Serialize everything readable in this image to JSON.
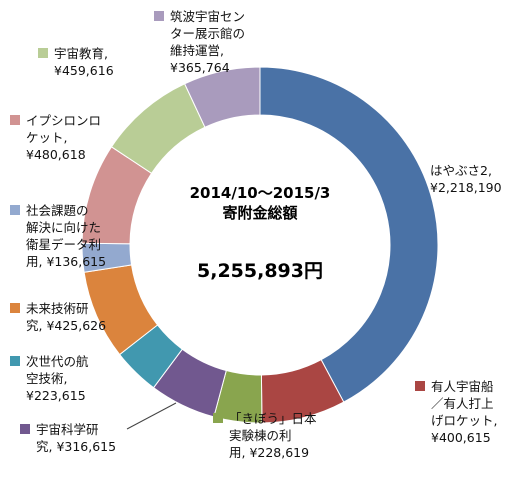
{
  "chart_data": {
    "type": "donut",
    "center_text": {
      "line1": "2014/10～2015/3",
      "line2": "寄附金総額",
      "total": "5,255,893円"
    },
    "series": [
      {
        "label": "はやぶさ2,",
        "lines": [
          "はやぶさ2,",
          "¥2,218,190"
        ],
        "value": 2218190,
        "color": "#4a72a6"
      },
      {
        "label": "有人宇宙船／有人打上げロケット,",
        "lines": [
          "有人宇宙船",
          "／有人打上",
          "げロケット,",
          "¥400,615"
        ],
        "value": 400615,
        "color": "#aa4643"
      },
      {
        "label": "「きぼう」日本実験棟の利用,",
        "lines": [
          "「きぼう」日本",
          "実験棟の利",
          "用, ¥228,619"
        ],
        "value": 228619,
        "color": "#89a54e"
      },
      {
        "label": "宇宙科学研究,",
        "lines": [
          "宇宙科学研",
          "究, ¥316,615"
        ],
        "value": 316615,
        "color": "#71588f"
      },
      {
        "label": "次世代の航空技術,",
        "lines": [
          "次世代の航",
          "空技術,",
          "¥223,615"
        ],
        "value": 223615,
        "color": "#4198af"
      },
      {
        "label": "未来技術研究,",
        "lines": [
          "未来技術研",
          "究, ¥425,626"
        ],
        "value": 425626,
        "color": "#db843d"
      },
      {
        "label": "社会課題の解決に向けた衛星データ利用,",
        "lines": [
          "社会課題の",
          "解決に向けた",
          "衛星データ利",
          "用, ¥136,615"
        ],
        "value": 136615,
        "color": "#93a9cf"
      },
      {
        "label": "イプシロンロケット,",
        "lines": [
          "イプシロンロ",
          "ケット,",
          "¥480,618"
        ],
        "value": 480618,
        "color": "#d19392"
      },
      {
        "label": "宇宙教育,",
        "lines": [
          "宇宙教育,",
          "¥459,616"
        ],
        "value": 459616,
        "color": "#b9cd96"
      },
      {
        "label": "筑波宇宙センター展示館の維持運営,",
        "lines": [
          "筑波宇宙セン",
          "ター展示館の",
          "維持運営,",
          "¥365,764"
        ],
        "value": 365764,
        "color": "#a99bbd"
      }
    ]
  }
}
